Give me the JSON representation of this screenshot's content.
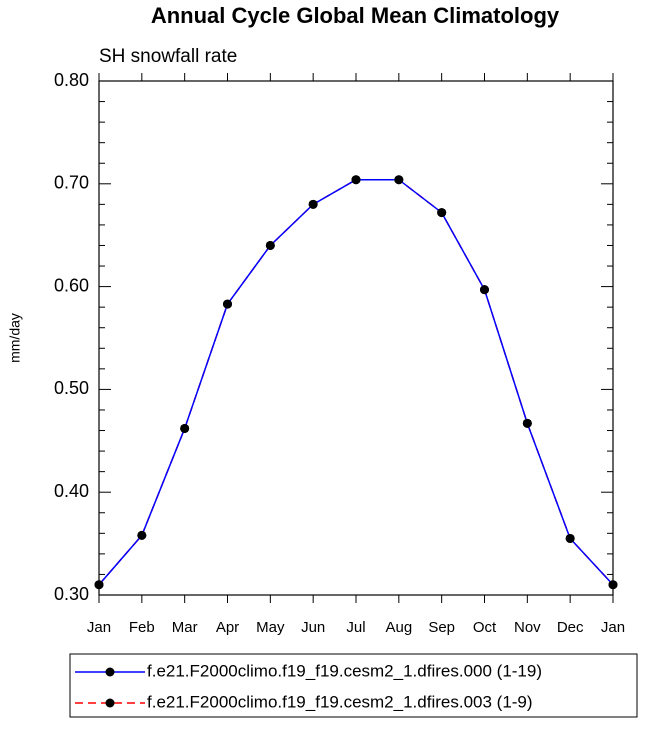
{
  "chart_data": {
    "type": "line",
    "title": "Annual Cycle Global Mean Climatology",
    "subtitle": "SH snowfall rate",
    "ylabel": "mm/day",
    "categories": [
      "Jan",
      "Feb",
      "Mar",
      "Apr",
      "May",
      "Jun",
      "Jul",
      "Aug",
      "Sep",
      "Oct",
      "Nov",
      "Dec",
      "Jan"
    ],
    "series": [
      {
        "name": "f.e21.F2000climo.f19_f19.cesm2_1.dfires.000 (1-19)",
        "color": "#0000ff",
        "dash": false,
        "values": [
          0.31,
          0.358,
          0.462,
          0.583,
          0.64,
          0.68,
          0.704,
          0.704,
          0.672,
          0.597,
          0.467,
          0.355,
          0.31
        ]
      },
      {
        "name": "f.e21.F2000climo.f19_f19.cesm2_1.dfires.003 (1-9)",
        "color": "#ff0000",
        "dash": true,
        "values": [
          0.31,
          0.358,
          0.462,
          0.583,
          0.64,
          0.68,
          0.704,
          0.704,
          0.672,
          0.597,
          0.467,
          0.355,
          0.31
        ]
      }
    ],
    "ylim": [
      0.3,
      0.8
    ],
    "yticks": [
      {
        "value": 0.3,
        "label": "0.30"
      },
      {
        "value": 0.4,
        "label": "0.40"
      },
      {
        "value": 0.5,
        "label": "0.50"
      },
      {
        "value": 0.6,
        "label": "0.60"
      },
      {
        "value": 0.7,
        "label": "0.70"
      },
      {
        "value": 0.8,
        "label": "0.80"
      }
    ],
    "yminorticks": [
      0.32,
      0.34,
      0.36,
      0.38,
      0.42,
      0.44,
      0.46,
      0.48,
      0.52,
      0.54,
      0.56,
      0.58,
      0.62,
      0.64,
      0.66,
      0.68,
      0.72,
      0.74,
      0.76,
      0.78
    ]
  }
}
